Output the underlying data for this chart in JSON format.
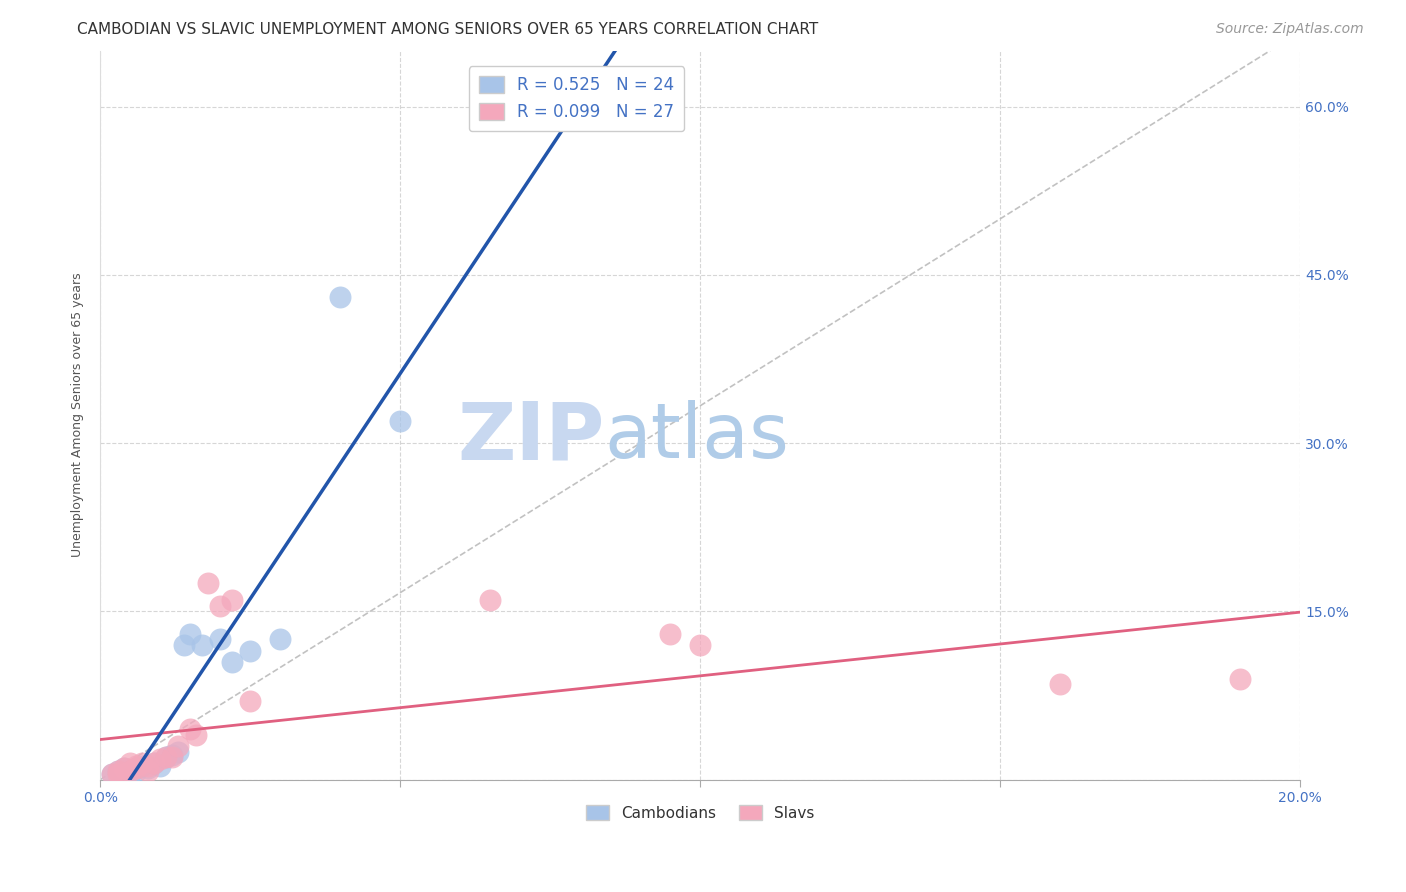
{
  "title": "CAMBODIAN VS SLAVIC UNEMPLOYMENT AMONG SENIORS OVER 65 YEARS CORRELATION CHART",
  "source": "Source: ZipAtlas.com",
  "ylabel": "Unemployment Among Seniors over 65 years",
  "xlim": [
    0.0,
    0.2
  ],
  "ylim": [
    0.0,
    0.65
  ],
  "x_ticks": [
    0.0,
    0.05,
    0.1,
    0.15,
    0.2
  ],
  "x_tick_labels": [
    "0.0%",
    "",
    "",
    "",
    "20.0%"
  ],
  "y_ticks": [
    0.0,
    0.15,
    0.3,
    0.45,
    0.6
  ],
  "y_tick_labels_right": [
    "",
    "15.0%",
    "30.0%",
    "45.0%",
    "60.0%"
  ],
  "cambodian_color": "#a8c4e8",
  "slavic_color": "#f4a8bc",
  "cambodian_R": 0.525,
  "cambodian_N": 24,
  "slavic_R": 0.099,
  "slavic_N": 27,
  "background_color": "#ffffff",
  "grid_color": "#cccccc",
  "watermark_zip": "ZIP",
  "watermark_atlas": "atlas",
  "watermark_color_zip": "#c8d8f0",
  "watermark_color_atlas": "#b0c8e8",
  "blue_line_color": "#2255aa",
  "pink_line_color": "#e06080",
  "diag_color": "#bbbbbb",
  "tick_color": "#4472c4",
  "cambodian_x": [
    0.002,
    0.003,
    0.004,
    0.004,
    0.005,
    0.005,
    0.006,
    0.006,
    0.007,
    0.008,
    0.009,
    0.01,
    0.011,
    0.012,
    0.013,
    0.014,
    0.015,
    0.017,
    0.02,
    0.022,
    0.025,
    0.03,
    0.04,
    0.05
  ],
  "cambodian_y": [
    0.005,
    0.008,
    0.005,
    0.01,
    0.005,
    0.008,
    0.01,
    0.008,
    0.012,
    0.01,
    0.015,
    0.012,
    0.02,
    0.022,
    0.025,
    0.12,
    0.13,
    0.12,
    0.125,
    0.105,
    0.115,
    0.125,
    0.43,
    0.32
  ],
  "slavic_x": [
    0.002,
    0.003,
    0.003,
    0.004,
    0.005,
    0.005,
    0.006,
    0.006,
    0.007,
    0.008,
    0.008,
    0.009,
    0.01,
    0.011,
    0.012,
    0.013,
    0.015,
    0.016,
    0.018,
    0.02,
    0.022,
    0.025,
    0.065,
    0.095,
    0.1,
    0.16,
    0.19
  ],
  "slavic_y": [
    0.005,
    0.008,
    0.005,
    0.01,
    0.008,
    0.015,
    0.01,
    0.012,
    0.015,
    0.008,
    0.012,
    0.015,
    0.018,
    0.02,
    0.02,
    0.03,
    0.045,
    0.04,
    0.175,
    0.155,
    0.16,
    0.07,
    0.16,
    0.13,
    0.12,
    0.085,
    0.09
  ],
  "title_fontsize": 11,
  "axis_label_fontsize": 9,
  "tick_fontsize": 10,
  "legend_fontsize": 12,
  "source_fontsize": 10
}
